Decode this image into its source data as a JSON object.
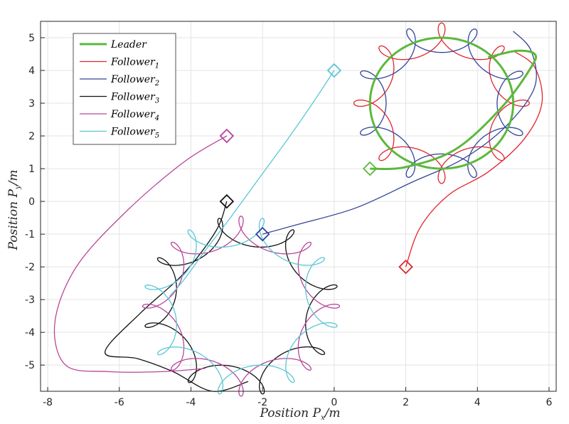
{
  "chart_data": {
    "type": "line",
    "title": "",
    "xlabel": "Position P_x/m",
    "ylabel": "Position P_y/m",
    "xlabel_parts": {
      "text": "Position P",
      "sub": "x",
      "unit": "/m"
    },
    "ylabel_parts": {
      "text": "Position P",
      "sub": "y",
      "unit": "/m"
    },
    "xlim": [
      -8.2,
      6.2
    ],
    "ylim": [
      -5.8,
      5.5
    ],
    "xticks": [
      -8,
      -6,
      -4,
      -2,
      0,
      2,
      4,
      6
    ],
    "yticks": [
      -5,
      -4,
      -3,
      -2,
      -1,
      0,
      1,
      2,
      3,
      4,
      5
    ],
    "grid": true,
    "legend_position": "top-left",
    "leader_orbit": {
      "center": [
        3,
        3
      ],
      "radius": 2
    },
    "group_orbit": {
      "center": [
        -2.6,
        -3.2
      ],
      "radius": 2.3
    },
    "series": [
      {
        "name": "Leader",
        "name_sub": "",
        "color": "#5cb83c",
        "width": 3,
        "start": [
          1,
          1
        ],
        "approach": [
          [
            1,
            1
          ],
          [
            2.0,
            1.05
          ],
          [
            3.4,
            1.6
          ],
          [
            4.7,
            2.9
          ],
          [
            5.5,
            4.1
          ],
          [
            5.6,
            4.5
          ],
          [
            5.1,
            4.6
          ],
          [
            4.3,
            4.4
          ]
        ],
        "orbit": {
          "center": [
            3,
            3
          ],
          "radius": 2,
          "petals": 0,
          "loop": 0
        }
      },
      {
        "name": "Follower",
        "name_sub": "1",
        "color": "#e0262e",
        "width": 1.3,
        "start": [
          2,
          -2
        ],
        "approach": [
          [
            2,
            -2
          ],
          [
            2.4,
            -0.8
          ],
          [
            3.2,
            0.2
          ],
          [
            4.3,
            0.9
          ],
          [
            5.3,
            1.9
          ],
          [
            5.8,
            3.0
          ],
          [
            5.6,
            4.1
          ],
          [
            5.0,
            4.6
          ]
        ],
        "orbit": {
          "center": [
            3,
            3
          ],
          "radius": 2,
          "petals": 6,
          "loop": 0.45,
          "phase": 0.0
        }
      },
      {
        "name": "Follower",
        "name_sub": "2",
        "color": "#33449a",
        "width": 1.3,
        "start": [
          -2,
          -1
        ],
        "approach": [
          [
            -2,
            -1
          ],
          [
            -1.0,
            -0.7
          ],
          [
            0.6,
            -0.2
          ],
          [
            2.2,
            0.6
          ],
          [
            3.6,
            1.3
          ],
          [
            4.8,
            2.3
          ],
          [
            5.6,
            3.5
          ],
          [
            5.5,
            4.6
          ],
          [
            5.0,
            5.2
          ]
        ],
        "orbit": {
          "center": [
            3,
            3
          ],
          "radius": 2,
          "petals": 6,
          "loop": 0.45,
          "phase": 0.52
        }
      },
      {
        "name": "Follower",
        "name_sub": "3",
        "color": "#111111",
        "width": 1.3,
        "start": [
          -3,
          0
        ],
        "approach": [
          [
            -3,
            0
          ],
          [
            -3.3,
            -0.9
          ],
          [
            -4.2,
            -2.2
          ],
          [
            -5.4,
            -3.4
          ],
          [
            -6.4,
            -4.6
          ],
          [
            -5.5,
            -4.8
          ],
          [
            -4.5,
            -5.2
          ],
          [
            -3.4,
            -5.8
          ],
          [
            -2.4,
            -5.5
          ]
        ],
        "orbit": {
          "center": [
            -2.6,
            -3.2
          ],
          "radius": 2.3,
          "petals": 6,
          "loop": 0.45,
          "phase": 0.3
        }
      },
      {
        "name": "Follower",
        "name_sub": "4",
        "color": "#b7479a",
        "width": 1.3,
        "start": [
          -3,
          2
        ],
        "approach": [
          [
            -3,
            2
          ],
          [
            -4.2,
            1.2
          ],
          [
            -5.8,
            -0.3
          ],
          [
            -7.2,
            -2.0
          ],
          [
            -7.8,
            -3.7
          ],
          [
            -7.5,
            -5.0
          ],
          [
            -6.3,
            -5.2
          ],
          [
            -4.8,
            -5.2
          ],
          [
            -3.6,
            -5.1
          ]
        ],
        "orbit": {
          "center": [
            -2.6,
            -3.2
          ],
          "radius": 2.3,
          "petals": 6,
          "loop": 0.45,
          "phase": 0.0
        }
      },
      {
        "name": "Follower",
        "name_sub": "5",
        "color": "#5bc6d6",
        "width": 1.3,
        "start": [
          0,
          4
        ],
        "approach": [
          [
            0,
            4
          ],
          [
            -0.6,
            3.0
          ],
          [
            -1.3,
            1.9
          ],
          [
            -2.1,
            0.7
          ],
          [
            -2.9,
            -0.5
          ],
          [
            -3.6,
            -1.5
          ],
          [
            -4.2,
            -2.4
          ],
          [
            -4.6,
            -2.9
          ]
        ],
        "orbit": {
          "center": [
            -2.6,
            -3.2
          ],
          "radius": 2.3,
          "petals": 6,
          "loop": 0.45,
          "phase": 0.75
        }
      }
    ]
  }
}
